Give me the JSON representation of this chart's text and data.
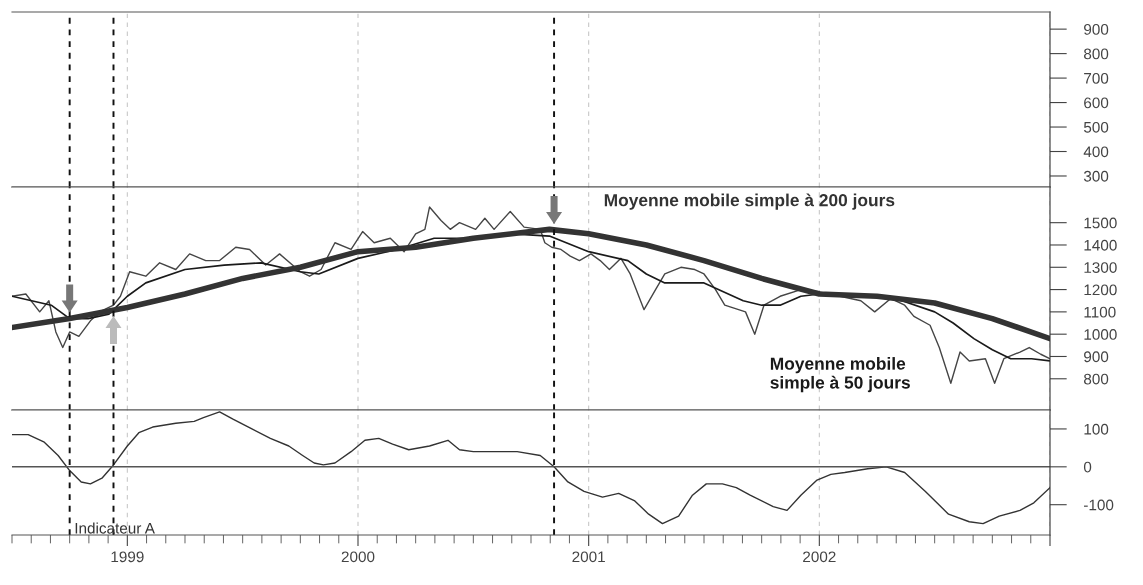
{
  "chart_data": [
    {
      "type": "line",
      "xlim": [
        1998.5,
        2003.0
      ],
      "xticks": [
        1999,
        2000,
        2001,
        2002,
        2003
      ],
      "ylim": [
        255,
        970
      ],
      "yticks": [
        300,
        400,
        500,
        600,
        700,
        800,
        900
      ],
      "grid": "x",
      "tick_labels": "y",
      "ref_lines": [
        {
          "axis": "x",
          "value": 1998.75,
          "color": "#111111",
          "line_style": "dashed"
        },
        {
          "axis": "x",
          "value": 1998.94,
          "color": "#111111",
          "line_style": "dashed"
        },
        {
          "axis": "x",
          "value": 2000.85,
          "color": "#111111",
          "line_style": "dashed"
        }
      ]
    },
    {
      "type": "line",
      "xlim": [
        1998.5,
        2003.0
      ],
      "xticks": [
        1999,
        2000,
        2001,
        2002,
        2003
      ],
      "ylim": [
        660,
        1660
      ],
      "yticks": [
        800,
        900,
        1000,
        1100,
        1200,
        1300,
        1400,
        1500
      ],
      "grid": "x",
      "tick_labels": "y",
      "ref_lines": [
        {
          "axis": "x",
          "value": 1998.75,
          "color": "#111111",
          "line_style": "dashed"
        },
        {
          "axis": "x",
          "value": 1998.94,
          "color": "#111111",
          "line_style": "dashed"
        },
        {
          "axis": "x",
          "value": 2000.85,
          "color": "#111111",
          "line_style": "dashed"
        }
      ],
      "series": [
        {
          "color": "#454545",
          "x": [
            1998.5,
            1998.56,
            1998.62,
            1998.66,
            1998.69,
            1998.72,
            1998.75,
            1998.79,
            1998.84,
            1998.88,
            1998.94,
            1998.97,
            1999.01,
            1999.08,
            1999.14,
            1999.21,
            1999.27,
            1999.34,
            1999.4,
            1999.47,
            1999.53,
            1999.6,
            1999.66,
            1999.75,
            1999.79,
            1999.84,
            1999.9,
            1999.97,
            2000.02,
            2000.07,
            2000.14,
            2000.2,
            2000.25,
            2000.29,
            2000.31,
            2000.36,
            2000.4,
            2000.44,
            2000.51,
            2000.55,
            2000.59,
            2000.66,
            2000.72,
            2000.79,
            2000.81,
            2000.84,
            2000.88,
            2000.92,
            2000.96,
            2001.01,
            2001.05,
            2001.09,
            2001.14,
            2001.18,
            2001.24,
            2001.29,
            2001.33,
            2001.4,
            2001.46,
            2001.5,
            2001.55,
            2001.59,
            2001.68,
            2001.72,
            2001.76,
            2001.83,
            2001.92,
            2002.0,
            2002.09,
            2002.18,
            2002.24,
            2002.31,
            2002.37,
            2002.41,
            2002.48,
            2002.52,
            2002.57,
            2002.61,
            2002.65,
            2002.72,
            2002.76,
            2002.8,
            2002.87,
            2002.91,
            2002.96,
            2003.0
          ],
          "values": [
            1170,
            1180,
            1100,
            1150,
            1010,
            940,
            1010,
            990,
            1060,
            1100,
            1130,
            1170,
            1280,
            1260,
            1320,
            1290,
            1360,
            1330,
            1330,
            1390,
            1380,
            1310,
            1360,
            1280,
            1260,
            1290,
            1410,
            1380,
            1460,
            1410,
            1430,
            1370,
            1450,
            1470,
            1570,
            1510,
            1470,
            1500,
            1470,
            1520,
            1470,
            1550,
            1480,
            1470,
            1410,
            1390,
            1380,
            1350,
            1330,
            1360,
            1330,
            1290,
            1340,
            1270,
            1110,
            1200,
            1270,
            1300,
            1290,
            1270,
            1200,
            1130,
            1100,
            1000,
            1130,
            1170,
            1200,
            1190,
            1170,
            1150,
            1100,
            1160,
            1130,
            1080,
            1040,
            940,
            780,
            920,
            880,
            890,
            780,
            890,
            920,
            940,
            910,
            890
          ]
        },
        {
          "name": "Moyenne mobile simple à 50 jours",
          "color": "#1a1a1a",
          "x": [
            1998.5,
            1998.67,
            1998.75,
            1998.83,
            1998.92,
            1999.0,
            1999.08,
            1999.25,
            1999.42,
            1999.58,
            1999.75,
            1999.83,
            2000.0,
            2000.17,
            2000.33,
            2000.5,
            2000.67,
            2000.83,
            2001.0,
            2001.17,
            2001.25,
            2001.33,
            2001.42,
            2001.5,
            2001.67,
            2001.75,
            2001.83,
            2001.92,
            2002.0,
            2002.17,
            2002.33,
            2002.5,
            2002.58,
            2002.67,
            2002.75,
            2002.83,
            2002.92,
            2003.0
          ],
          "values": [
            1170,
            1130,
            1070,
            1070,
            1090,
            1170,
            1230,
            1290,
            1310,
            1320,
            1280,
            1270,
            1340,
            1380,
            1430,
            1430,
            1450,
            1440,
            1370,
            1330,
            1270,
            1230,
            1230,
            1230,
            1150,
            1130,
            1130,
            1170,
            1180,
            1170,
            1160,
            1100,
            1050,
            980,
            930,
            890,
            890,
            880
          ]
        },
        {
          "name": "Moyenne mobile simple à 200 jours",
          "color": "#333333",
          "x": [
            1998.5,
            1998.75,
            1999.0,
            1999.25,
            1999.5,
            1999.75,
            2000.0,
            2000.25,
            2000.5,
            2000.75,
            2000.83,
            2001.0,
            2001.25,
            2001.5,
            2001.75,
            2002.0,
            2002.25,
            2002.5,
            2002.75,
            2003.0
          ],
          "values": [
            1030,
            1070,
            1120,
            1180,
            1250,
            1300,
            1370,
            1390,
            1430,
            1460,
            1470,
            1450,
            1400,
            1330,
            1250,
            1180,
            1170,
            1140,
            1070,
            980
          ]
        }
      ]
    },
    {
      "type": "line",
      "xlim": [
        1998.5,
        2003.0
      ],
      "xticks": [
        1999,
        2000,
        2001,
        2002,
        {
          "value": 2003,
          "label": null
        }
      ],
      "ylim": [
        -180,
        150
      ],
      "yticks": [
        -100,
        0,
        100
      ],
      "grid": "x",
      "ref_lines": [
        {
          "axis": "y",
          "value": 0,
          "color": "#555555",
          "line_style": "solid"
        },
        {
          "axis": "x",
          "value": 1998.75,
          "color": "#111111",
          "line_style": "dashed"
        },
        {
          "axis": "x",
          "value": 1998.94,
          "color": "#111111",
          "line_style": "dashed"
        },
        {
          "axis": "x",
          "value": 2000.85,
          "color": "#111111",
          "line_style": "dashed"
        }
      ],
      "series": [
        {
          "name": "Indicateur A",
          "color": "#333333",
          "x": [
            1998.5,
            1998.57,
            1998.64,
            1998.7,
            1998.75,
            1998.8,
            1998.84,
            1998.89,
            1998.94,
            1999.0,
            1999.05,
            1999.11,
            1999.21,
            1999.29,
            1999.33,
            1999.4,
            1999.46,
            1999.54,
            1999.62,
            1999.7,
            1999.76,
            1999.81,
            1999.85,
            1999.9,
            1999.97,
            2000.03,
            2000.09,
            2000.15,
            2000.22,
            2000.31,
            2000.39,
            2000.44,
            2000.5,
            2000.6,
            2000.69,
            2000.79,
            2000.85,
            2000.91,
            2000.98,
            2001.06,
            2001.13,
            2001.2,
            2001.26,
            2001.32,
            2001.39,
            2001.45,
            2001.51,
            2001.58,
            2001.64,
            2001.7,
            2001.8,
            2001.86,
            2001.92,
            2001.99,
            2002.05,
            2002.11,
            2002.21,
            2002.29,
            2002.37,
            2002.46,
            2002.56,
            2002.65,
            2002.71,
            2002.78,
            2002.87,
            2002.93,
            2003.0
          ],
          "values": [
            85,
            85,
            65,
            30,
            -10,
            -40,
            -45,
            -30,
            5,
            55,
            90,
            105,
            115,
            120,
            130,
            145,
            125,
            100,
            75,
            55,
            30,
            10,
            5,
            10,
            40,
            70,
            75,
            60,
            45,
            55,
            70,
            45,
            40,
            40,
            40,
            30,
            0,
            -40,
            -65,
            -80,
            -70,
            -90,
            -125,
            -150,
            -130,
            -75,
            -45,
            -45,
            -55,
            -75,
            -105,
            -115,
            -75,
            -35,
            -20,
            -15,
            -5,
            0,
            -15,
            -65,
            -125,
            -145,
            -150,
            -130,
            -115,
            -95,
            -55
          ]
        }
      ]
    }
  ]
}
